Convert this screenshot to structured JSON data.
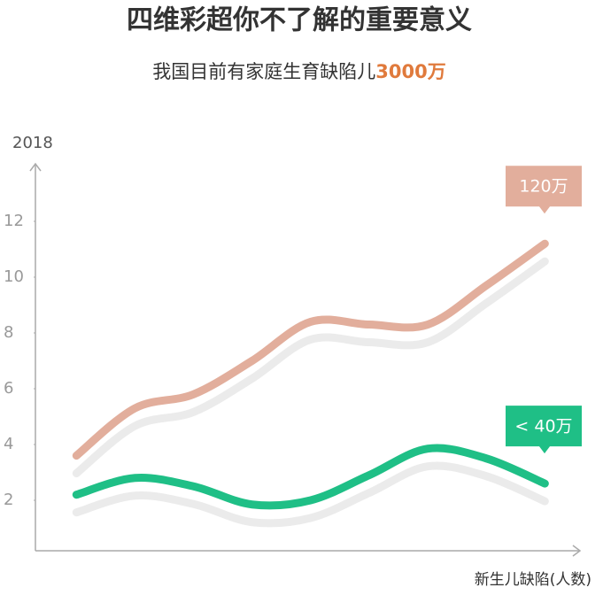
{
  "chart_data": {
    "type": "line",
    "title": "四维彩超你不了解的重要意义",
    "subtitle": {
      "text": "我国目前有家庭生育缺陷儿",
      "highlight": "3000万"
    },
    "y_label": "2018",
    "x_label": "新生儿缺陷(人数)",
    "x": [
      1,
      2,
      3,
      4,
      5,
      6,
      7,
      8,
      9
    ],
    "xlim": [
      0.3,
      9.6
    ],
    "ylim": [
      0,
      14
    ],
    "yticks": [
      2,
      4,
      6,
      8,
      10,
      12
    ],
    "series": [
      {
        "name": null,
        "color": "#e2ae9c",
        "values": [
          3.6,
          5.3,
          5.8,
          7.0,
          8.4,
          8.3,
          8.3,
          9.7,
          11.2
        ],
        "annotation": "120万"
      },
      {
        "name": null,
        "color": "#1fbf86",
        "values": [
          2.2,
          2.8,
          2.5,
          1.85,
          2.0,
          2.9,
          3.85,
          3.5,
          2.6
        ],
        "annotation": "< 40万"
      }
    ],
    "shadow_color": "#ebebeb"
  }
}
